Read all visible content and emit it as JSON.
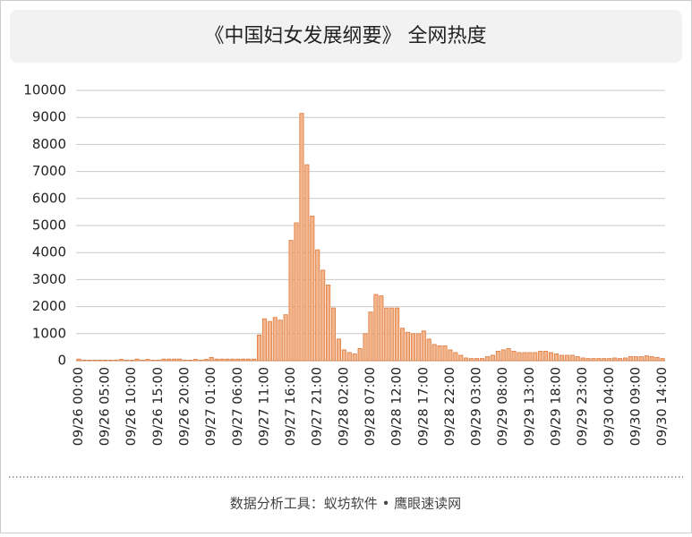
{
  "chart_data": {
    "type": "bar",
    "title": "《中国妇女发展纲要》 全网热度",
    "footer": "数据分析工具：蚁坊软件 • 鹰眼速读网",
    "categories": [
      "09/26 00:00",
      null,
      null,
      null,
      null,
      "09/26 05:00",
      null,
      null,
      null,
      null,
      "09/26 10:00",
      null,
      null,
      null,
      null,
      "09/26 15:00",
      null,
      null,
      null,
      null,
      "09/26 20:00",
      null,
      null,
      null,
      null,
      "09/27 01:00",
      null,
      null,
      null,
      null,
      "09/27 06:00",
      null,
      null,
      null,
      null,
      "09/27 11:00",
      null,
      null,
      null,
      null,
      "09/27 16:00",
      null,
      null,
      null,
      null,
      "09/27 21:00",
      null,
      null,
      null,
      null,
      "09/28 02:00",
      null,
      null,
      null,
      null,
      "09/28 07:00",
      null,
      null,
      null,
      null,
      "09/28 12:00",
      null,
      null,
      null,
      null,
      "09/28 17:00",
      null,
      null,
      null,
      null,
      "09/28 22:00",
      null,
      null,
      null,
      null,
      "09/29 03:00",
      null,
      null,
      null,
      null,
      "09/29 08:00",
      null,
      null,
      null,
      null,
      "09/29 13:00",
      null,
      null,
      null,
      null,
      "09/29 18:00",
      null,
      null,
      null,
      null,
      "09/29 23:00",
      null,
      null,
      null,
      null,
      "09/30 04:00",
      null,
      null,
      null,
      null,
      "09/30 09:00",
      null,
      null,
      null,
      null,
      "09/30 14:00"
    ],
    "values": [
      60,
      20,
      20,
      20,
      20,
      20,
      20,
      20,
      50,
      20,
      20,
      60,
      20,
      50,
      20,
      20,
      60,
      60,
      60,
      60,
      20,
      20,
      50,
      20,
      50,
      120,
      60,
      60,
      60,
      60,
      60,
      60,
      60,
      60,
      950,
      1550,
      1450,
      1600,
      1500,
      1700,
      4450,
      5100,
      9150,
      7250,
      5350,
      4100,
      3350,
      2800,
      1950,
      800,
      400,
      300,
      250,
      450,
      1000,
      1800,
      2450,
      2400,
      1950,
      1950,
      1950,
      1200,
      1050,
      1000,
      1000,
      1100,
      800,
      600,
      550,
      550,
      400,
      300,
      200,
      100,
      80,
      80,
      80,
      150,
      200,
      350,
      400,
      450,
      350,
      300,
      300,
      300,
      300,
      350,
      350,
      300,
      250,
      200,
      200,
      200,
      150,
      100,
      80,
      80,
      80,
      80,
      80,
      100,
      80,
      100,
      150,
      150,
      150,
      180,
      150,
      120,
      80
    ],
    "color": "#f2b58c",
    "edge": "#e07a3c",
    "ylim": [
      0,
      10000
    ],
    "yticks": [
      0,
      1000,
      2000,
      3000,
      4000,
      5000,
      6000,
      7000,
      8000,
      9000,
      10000
    ],
    "grid": true
  }
}
